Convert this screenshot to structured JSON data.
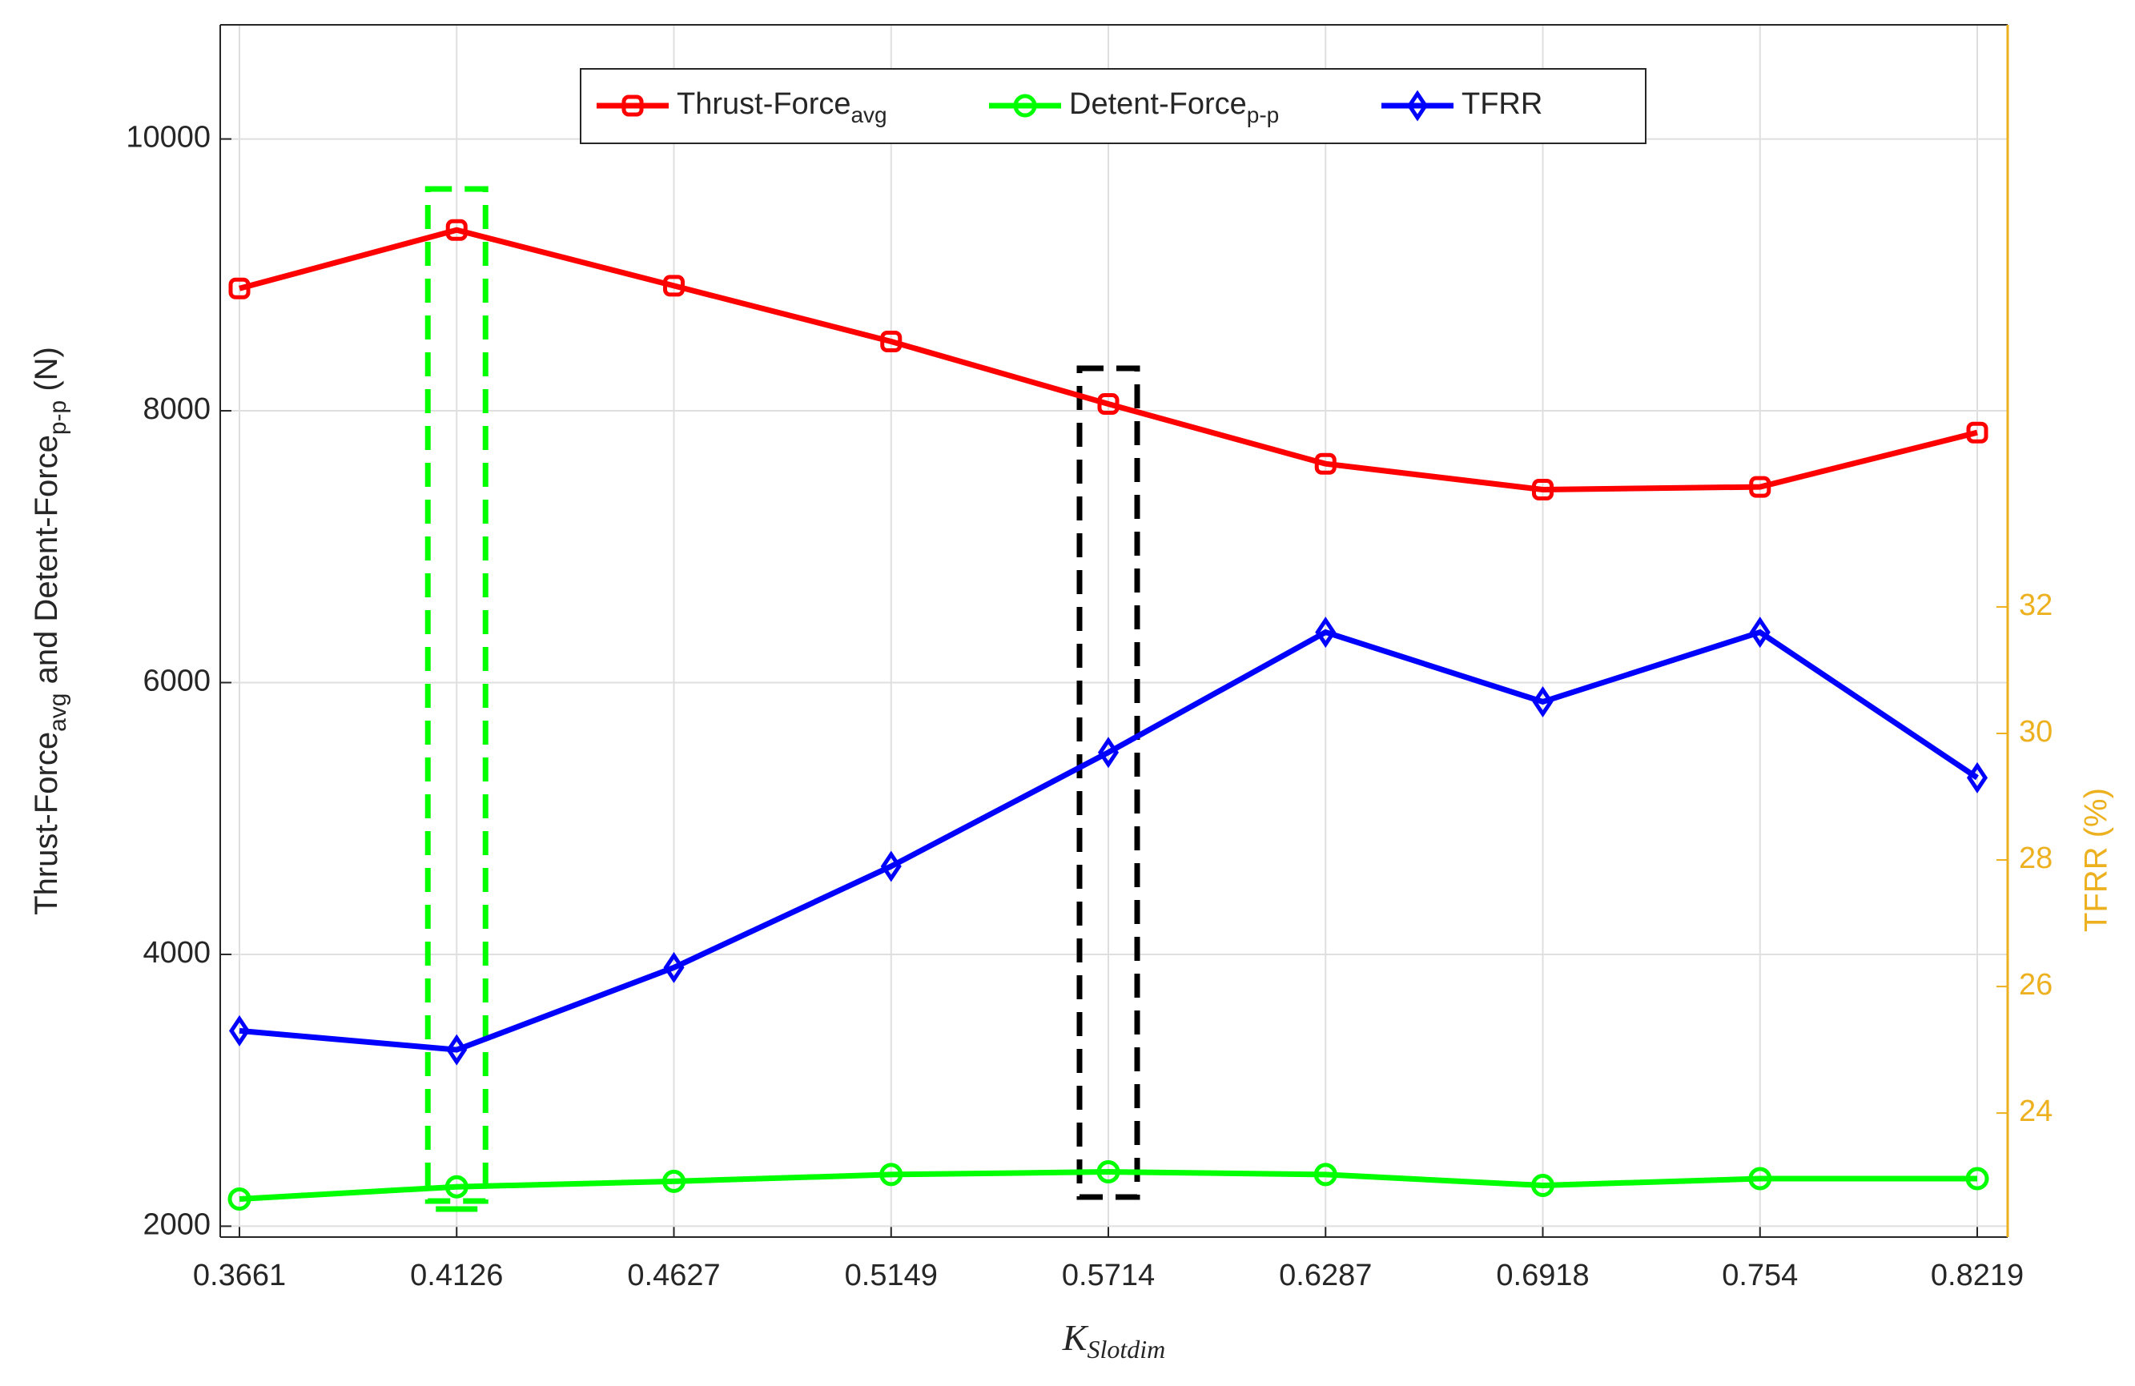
{
  "chart_data": {
    "type": "line",
    "categories": [
      "0.3661",
      "0.4126",
      "0.4627",
      "0.5149",
      "0.5714",
      "0.6287",
      "0.6918",
      "0.754",
      "0.8219"
    ],
    "x_label": "K",
    "x_label_sub": "Slotdim",
    "y_label_parts": [
      "Thrust-Force",
      "avg",
      " and Detent-Force",
      "p-p",
      " (N)"
    ],
    "y2_label": "TFRR (%)",
    "ylim": [
      1920,
      10840
    ],
    "yticks": [
      2000,
      4000,
      6000,
      8000,
      10000
    ],
    "y2lim": [
      22.04,
      41.2
    ],
    "y2ticks": [
      24,
      26,
      28,
      30,
      32
    ],
    "y2_color": "#edb120",
    "grid": true,
    "legend": "top",
    "series": [
      {
        "name": "Thrust-Force",
        "name_sub": "avg",
        "color": "#ff0000",
        "marker": "square",
        "values": [
          8900,
          9330,
          8920,
          8510,
          8050,
          7610,
          7420,
          7440,
          7840
        ]
      },
      {
        "name": "Detent-Force",
        "name_sub": "p-p",
        "color": "#00ff00",
        "marker": "circle",
        "values": [
          2200,
          2290,
          2330,
          2380,
          2400,
          2380,
          2300,
          2350,
          2350
        ]
      },
      {
        "name": "TFRR",
        "color": "#0000ff",
        "marker": "diamond",
        "axis": "y2",
        "values": [
          25.3,
          25.0,
          26.3,
          27.9,
          29.7,
          31.6,
          30.5,
          31.6,
          29.3
        ]
      }
    ]
  }
}
